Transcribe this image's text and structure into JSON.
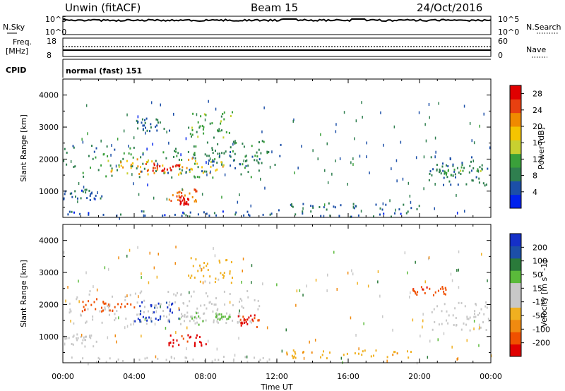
{
  "header": {
    "station": "Unwin (fitACF)",
    "beam": "Beam 15",
    "date": "24/Oct/2016"
  },
  "panels": {
    "nsky": {
      "label": "N.Sky",
      "yticks": [
        "10^5",
        "10^0"
      ],
      "right_label": "N.Search"
    },
    "freq": {
      "label_line1": "Freq.",
      "label_line2": "[MHz]",
      "yticks_left": [
        "18",
        "8"
      ],
      "yticks_right": [
        "60",
        "0"
      ],
      "right_label": "Nave"
    },
    "cpid": {
      "label": "CPID",
      "value": "normal (fast) 151"
    }
  },
  "colors": {
    "power_scale": [
      "#0022ee",
      "#1c4fa8",
      "#2f7f4f",
      "#3aa03a",
      "#c8d030",
      "#f5c400",
      "#f08a00",
      "#e84010",
      "#e00000"
    ],
    "velocity_scale": [
      "#e00000",
      "#f05000",
      "#f08a10",
      "#f0b020",
      "#c8c8c8",
      "#c8c8c8",
      "#5aba3a",
      "#2a7a3a",
      "#1c4fa8",
      "#1530c8"
    ]
  },
  "chart_data": [
    {
      "type": "heatmap",
      "title": "",
      "quantity": "Power",
      "ylabel": "Slant Range [km]",
      "xlabel": "Time UT",
      "xlim": [
        "00:00",
        "24:00"
      ],
      "ylim": [
        180,
        4500
      ],
      "yticks": [
        1000,
        2000,
        3000,
        4000
      ],
      "xticks": [
        "00:00",
        "04:00",
        "08:00",
        "12:00",
        "16:00",
        "20:00",
        "00:00"
      ],
      "colorbar": {
        "label": "Power [dB]",
        "ticks": [
          4,
          8,
          12,
          16,
          20,
          24,
          28
        ],
        "range": [
          0,
          30
        ]
      },
      "regions": [
        {
          "t0": 0.0,
          "t1": 11.0,
          "r0": 1450,
          "r1": 2450,
          "value": 9
        },
        {
          "t0": 2.5,
          "t1": 9.0,
          "r0": 1550,
          "r1": 2050,
          "value": 19
        },
        {
          "t0": 4.5,
          "t1": 6.5,
          "r0": 1650,
          "r1": 1900,
          "value": 26
        },
        {
          "t0": 8.0,
          "t1": 12.2,
          "r0": 1800,
          "r1": 2600,
          "value": 8
        },
        {
          "t0": 0.0,
          "t1": 2.2,
          "r0": 750,
          "r1": 1100,
          "value": 6
        },
        {
          "t0": 5.8,
          "t1": 7.5,
          "r0": 700,
          "r1": 1100,
          "value": 24
        },
        {
          "t0": 6.5,
          "t1": 7.0,
          "r0": 600,
          "r1": 850,
          "value": 28
        },
        {
          "t0": 7.0,
          "t1": 9.5,
          "r0": 2700,
          "r1": 3500,
          "value": 12
        },
        {
          "t0": 4.0,
          "t1": 6.0,
          "r0": 2900,
          "r1": 3300,
          "value": 6
        },
        {
          "t0": 0.0,
          "t1": 12.0,
          "r0": 200,
          "r1": 400,
          "value": 5
        },
        {
          "t0": 12.0,
          "t1": 20.0,
          "r0": 200,
          "r1": 650,
          "value": 6
        },
        {
          "t0": 20.5,
          "t1": 24.0,
          "r0": 1200,
          "r1": 2100,
          "value": 7
        },
        {
          "t0": 21.0,
          "t1": 24.0,
          "r0": 1500,
          "r1": 1800,
          "value": 11
        }
      ]
    },
    {
      "type": "heatmap",
      "title": "",
      "quantity": "Velocity",
      "ylabel": "Slant Range [km]",
      "xlabel": "Time UT",
      "xlim": [
        "00:00",
        "24:00"
      ],
      "ylim": [
        180,
        4500
      ],
      "yticks": [
        1000,
        2000,
        3000,
        4000
      ],
      "xticks": [
        "00:00",
        "04:00",
        "08:00",
        "12:00",
        "16:00",
        "20:00",
        "00:00"
      ],
      "colorbar": {
        "label": "Velocity [m s^-1]",
        "ticks": [
          -200,
          -100,
          -50,
          -15,
          15,
          50,
          100,
          200
        ],
        "range": [
          -250,
          250
        ]
      },
      "regions": [
        {
          "t0": 0.0,
          "t1": 11.0,
          "r0": 1400,
          "r1": 2450,
          "value": 0
        },
        {
          "t0": 1.0,
          "t1": 4.0,
          "r0": 1800,
          "r1": 2200,
          "value": -180
        },
        {
          "t0": 4.0,
          "t1": 6.5,
          "r0": 1450,
          "r1": 2100,
          "value": 210
        },
        {
          "t0": 6.5,
          "t1": 8.0,
          "r0": 1400,
          "r1": 1800,
          "value": 40
        },
        {
          "t0": 9.8,
          "t1": 11.0,
          "r0": 1200,
          "r1": 1700,
          "value": -200
        },
        {
          "t0": 8.5,
          "t1": 9.5,
          "r0": 1550,
          "r1": 1750,
          "value": 60
        },
        {
          "t0": 5.8,
          "t1": 8.0,
          "r0": 700,
          "r1": 1100,
          "value": -220
        },
        {
          "t0": 0.0,
          "t1": 2.0,
          "r0": 700,
          "r1": 1100,
          "value": 0
        },
        {
          "t0": 7.0,
          "t1": 9.5,
          "r0": 2700,
          "r1": 3500,
          "value": -70
        },
        {
          "t0": 0.0,
          "t1": 12.0,
          "r0": 200,
          "r1": 400,
          "value": 10
        },
        {
          "t0": 12.5,
          "t1": 19.5,
          "r0": 350,
          "r1": 600,
          "value": -80
        },
        {
          "t0": 19.5,
          "t1": 21.5,
          "r0": 2300,
          "r1": 2600,
          "value": -180
        },
        {
          "t0": 20.5,
          "t1": 24.0,
          "r0": 1200,
          "r1": 2100,
          "value": 0
        }
      ]
    }
  ]
}
